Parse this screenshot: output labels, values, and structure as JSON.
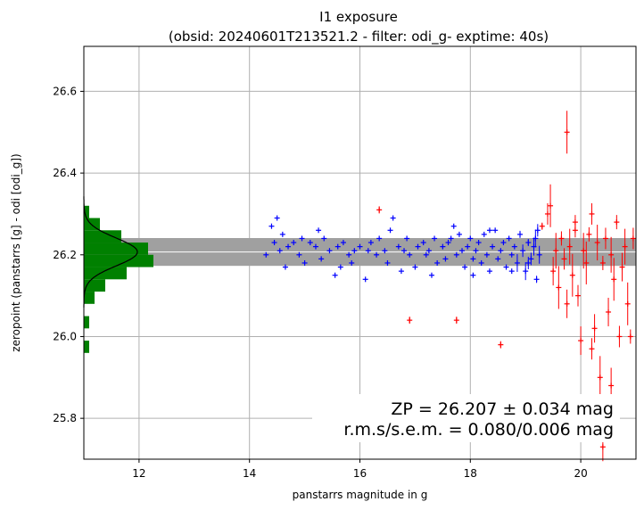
{
  "chart_data": {
    "type": "scatter",
    "title": "I1 exposure",
    "subtitle": "(obsid: 20240601T213521.2 - filter: odi_g- exptime: 40s)",
    "xlabel": "panstarrs magnitude in g",
    "ylabel": "zeropoint (panstarrs [g] - odi [odi_g])",
    "xlim": [
      11.0,
      21.0
    ],
    "ylim": [
      25.7,
      26.71
    ],
    "xticks": [
      12,
      14,
      16,
      18,
      20
    ],
    "xtick_labels": [
      "12",
      "14",
      "16",
      "18",
      "20"
    ],
    "yticks": [
      25.8,
      26.0,
      26.2,
      26.4,
      26.6
    ],
    "ytick_labels": [
      "25.8",
      "26.0",
      "26.2",
      "26.4",
      "26.6"
    ],
    "grid": true,
    "zp_value": 26.207,
    "zp_sigma": 0.034,
    "annotation_line1": "ZP = 26.207 ± 0.034 mag",
    "annotation_line2": "r.m.s/s.e.m. = 0.080/0.006 mag",
    "colors": {
      "used": "#0000ff",
      "rejected": "#ff0000",
      "histogram": "#008000",
      "band": "#a0a0a0",
      "gaussian": "#000000",
      "zp_line": "#ffffff",
      "grid": "#b0b0b0"
    },
    "histogram": {
      "bin_edges": [
        25.96,
        25.99,
        26.02,
        26.05,
        26.08,
        26.11,
        26.14,
        26.17,
        26.2,
        26.23,
        26.26,
        26.29,
        26.32
      ],
      "counts": [
        1,
        0,
        1,
        0,
        2,
        4,
        8,
        13,
        12,
        7,
        3,
        1
      ]
    },
    "gaussian": {
      "mean": 26.207,
      "sigma": 0.034,
      "peak": 10
    },
    "series": [
      {
        "label": "used",
        "points": [
          [
            14.3,
            26.2
          ],
          [
            14.4,
            26.27
          ],
          [
            14.45,
            26.23
          ],
          [
            14.5,
            26.29
          ],
          [
            14.55,
            26.21
          ],
          [
            14.6,
            26.25
          ],
          [
            14.7,
            26.22
          ],
          [
            14.8,
            26.23
          ],
          [
            14.9,
            26.2
          ],
          [
            14.95,
            26.24
          ],
          [
            15.0,
            26.18
          ],
          [
            15.1,
            26.23
          ],
          [
            15.2,
            26.22
          ],
          [
            15.3,
            26.19
          ],
          [
            15.35,
            26.24
          ],
          [
            15.45,
            26.21
          ],
          [
            15.55,
            26.15
          ],
          [
            15.6,
            26.22
          ],
          [
            15.7,
            26.23
          ],
          [
            15.8,
            26.2
          ],
          [
            15.85,
            26.18
          ],
          [
            15.9,
            26.21
          ],
          [
            16.0,
            26.22
          ],
          [
            16.1,
            26.14
          ],
          [
            16.2,
            26.23
          ],
          [
            16.3,
            26.2
          ],
          [
            16.35,
            26.24
          ],
          [
            16.45,
            26.21
          ],
          [
            16.5,
            26.18
          ],
          [
            16.55,
            26.26
          ],
          [
            16.6,
            26.29
          ],
          [
            16.7,
            26.22
          ],
          [
            16.8,
            26.21
          ],
          [
            16.85,
            26.24
          ],
          [
            16.9,
            26.2
          ],
          [
            17.0,
            26.17
          ],
          [
            17.05,
            26.22
          ],
          [
            17.15,
            26.23
          ],
          [
            17.2,
            26.2
          ],
          [
            17.25,
            26.21
          ],
          [
            17.35,
            26.24
          ],
          [
            17.4,
            26.18
          ],
          [
            17.5,
            26.22
          ],
          [
            17.55,
            26.19
          ],
          [
            17.6,
            26.23
          ],
          [
            17.7,
            26.27
          ],
          [
            17.75,
            26.2
          ],
          [
            17.8,
            26.25
          ],
          [
            17.85,
            26.21
          ],
          [
            17.9,
            26.17
          ],
          [
            17.95,
            26.22
          ],
          [
            18.0,
            26.24
          ],
          [
            18.05,
            26.19
          ],
          [
            18.1,
            26.21
          ],
          [
            18.15,
            26.23
          ],
          [
            18.2,
            26.18
          ],
          [
            18.25,
            26.25
          ],
          [
            18.3,
            26.2
          ],
          [
            18.35,
            26.16
          ],
          [
            18.4,
            26.22
          ],
          [
            18.45,
            26.26
          ],
          [
            18.5,
            26.19
          ],
          [
            18.55,
            26.21
          ],
          [
            18.6,
            26.23
          ],
          [
            18.65,
            26.17
          ],
          [
            18.7,
            26.24
          ],
          [
            18.75,
            26.2
          ],
          [
            18.8,
            26.22
          ],
          [
            18.85,
            26.18
          ],
          [
            18.9,
            26.25
          ],
          [
            18.95,
            26.21
          ],
          [
            19.0,
            26.16
          ],
          [
            19.05,
            26.23
          ],
          [
            19.1,
            26.19
          ],
          [
            19.15,
            26.22
          ],
          [
            19.2,
            26.14
          ],
          [
            19.22,
            26.26
          ],
          [
            19.25,
            26.2
          ],
          [
            14.65,
            26.17
          ],
          [
            15.25,
            26.26
          ],
          [
            15.65,
            26.17
          ],
          [
            16.15,
            26.21
          ],
          [
            16.75,
            26.16
          ],
          [
            17.3,
            26.15
          ],
          [
            17.65,
            26.24
          ],
          [
            18.05,
            26.15
          ],
          [
            18.35,
            26.26
          ],
          [
            18.75,
            26.16
          ],
          [
            19.05,
            26.18
          ],
          [
            19.18,
            26.24
          ]
        ]
      },
      {
        "label": "rejected",
        "points": [
          [
            16.35,
            26.31
          ],
          [
            16.9,
            26.04
          ],
          [
            17.75,
            26.04
          ],
          [
            18.55,
            25.98
          ],
          [
            19.75,
            26.5
          ],
          [
            19.3,
            26.27
          ],
          [
            19.4,
            26.3
          ],
          [
            19.5,
            26.16
          ],
          [
            19.55,
            26.21
          ],
          [
            19.6,
            26.12
          ],
          [
            19.65,
            26.24
          ],
          [
            19.7,
            26.19
          ],
          [
            19.75,
            26.08
          ],
          [
            19.8,
            26.22
          ],
          [
            19.85,
            26.15
          ],
          [
            19.9,
            26.26
          ],
          [
            19.95,
            26.1
          ],
          [
            20.0,
            25.99
          ],
          [
            20.05,
            26.21
          ],
          [
            20.1,
            26.18
          ],
          [
            20.15,
            26.25
          ],
          [
            20.2,
            25.97
          ],
          [
            20.25,
            26.02
          ],
          [
            20.3,
            26.23
          ],
          [
            20.35,
            25.9
          ],
          [
            20.4,
            26.18
          ],
          [
            20.45,
            26.24
          ],
          [
            20.5,
            26.06
          ],
          [
            20.55,
            26.2
          ],
          [
            20.6,
            26.14
          ],
          [
            20.65,
            26.28
          ],
          [
            20.7,
            26.0
          ],
          [
            20.75,
            26.17
          ],
          [
            20.8,
            26.22
          ],
          [
            20.85,
            26.08
          ],
          [
            20.9,
            26.0
          ],
          [
            20.95,
            26.24
          ],
          [
            20.4,
            25.73
          ],
          [
            20.55,
            25.88
          ],
          [
            19.45,
            26.32
          ],
          [
            19.9,
            26.28
          ],
          [
            20.2,
            26.3
          ]
        ]
      }
    ]
  }
}
